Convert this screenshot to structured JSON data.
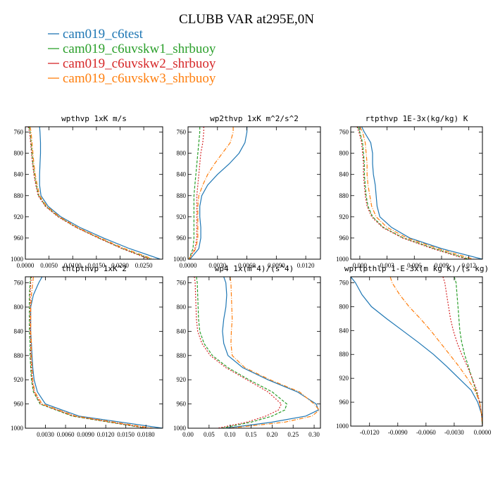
{
  "figure": {
    "title": "CLUBB VAR at295E,0N"
  },
  "legend": [
    {
      "name": "cam019_c6test",
      "color": "#1f77b4"
    },
    {
      "name": "cam019_c6uvskw1_shrbuoy",
      "color": "#2ca02c"
    },
    {
      "name": "cam019_c6uvskw2_shrbuoy",
      "color": "#d62728"
    },
    {
      "name": "cam019_c6uvskw3_shrbuoy",
      "color": "#ff7f0e"
    }
  ],
  "chart_data": [
    {
      "type": "line",
      "title": "wpthvp  1xK m/s",
      "xlim": [
        0,
        0.029
      ],
      "ylim": [
        1000,
        750
      ],
      "xticks": [
        0,
        0.005,
        0.01,
        0.015,
        0.02,
        0.025
      ],
      "xtick_labels": [
        "0.0000",
        "0.0050",
        "0.0100",
        "0.0150",
        "0.0200",
        "0.0250"
      ],
      "yticks": [
        760,
        800,
        840,
        880,
        920,
        960,
        1000
      ],
      "y": [
        750,
        760,
        780,
        800,
        820,
        840,
        860,
        880,
        900,
        920,
        940,
        960,
        980,
        1000
      ],
      "series": [
        {
          "x": [
            0.003,
            0.0031,
            0.0032,
            0.0032,
            0.0031,
            0.003,
            0.003,
            0.0033,
            0.0048,
            0.0075,
            0.0115,
            0.0165,
            0.022,
            0.0285
          ]
        },
        {
          "x": [
            0.0008,
            0.001,
            0.0012,
            0.0014,
            0.0016,
            0.0019,
            0.0023,
            0.0028,
            0.0043,
            0.007,
            0.0108,
            0.0155,
            0.0205,
            0.0265
          ]
        },
        {
          "x": [
            0.0006,
            0.0009,
            0.0011,
            0.0013,
            0.0015,
            0.0018,
            0.0022,
            0.0027,
            0.0042,
            0.0069,
            0.0107,
            0.0154,
            0.0204,
            0.0262
          ]
        },
        {
          "x": [
            0.001,
            0.0012,
            0.0014,
            0.0016,
            0.0018,
            0.0021,
            0.0025,
            0.003,
            0.0045,
            0.0072,
            0.011,
            0.0158,
            0.021,
            0.027
          ]
        }
      ]
    },
    {
      "type": "line",
      "title": "wp2thvp  1xK m^2/s^2",
      "xlim": [
        0,
        0.0135
      ],
      "ylim": [
        1000,
        750
      ],
      "xticks": [
        0,
        0.003,
        0.006,
        0.009,
        0.012
      ],
      "xtick_labels": [
        "0.0000",
        "0.0030",
        "0.0060",
        "0.0090",
        "0.0120"
      ],
      "yticks": [
        760,
        800,
        840,
        880,
        920,
        960,
        1000
      ],
      "y": [
        750,
        760,
        780,
        800,
        820,
        840,
        860,
        880,
        900,
        920,
        940,
        960,
        980,
        1000
      ],
      "series": [
        {
          "x": [
            0.006,
            0.006,
            0.0058,
            0.0052,
            0.0042,
            0.003,
            0.002,
            0.0014,
            0.0012,
            0.0012,
            0.0013,
            0.0013,
            0.0011,
            0.0002
          ]
        },
        {
          "x": [
            0.0012,
            0.0012,
            0.0011,
            0.001,
            0.0009,
            0.0008,
            0.0007,
            0.0006,
            0.0006,
            0.0006,
            0.0006,
            0.0006,
            0.0005,
            0.0001
          ]
        },
        {
          "x": [
            0.0016,
            0.0016,
            0.0015,
            0.0013,
            0.0012,
            0.0011,
            0.001,
            0.0009,
            0.0009,
            0.0009,
            0.0009,
            0.0009,
            0.0007,
            0.0001
          ]
        },
        {
          "x": [
            0.0046,
            0.0046,
            0.0043,
            0.0035,
            0.0027,
            0.002,
            0.0015,
            0.0011,
            0.001,
            0.001,
            0.001,
            0.001,
            0.0008,
            0.0001
          ]
        }
      ]
    },
    {
      "type": "line",
      "title": "rtpthvp  1E-3x(kg/kg) K",
      "xlim": [
        -0.001,
        0.0135
      ],
      "ylim": [
        1000,
        750
      ],
      "xticks": [
        0,
        0.003,
        0.006,
        0.009,
        0.012
      ],
      "xtick_labels": [
        "0.000",
        "0.003",
        "0.006",
        "0.009",
        "0.012"
      ],
      "yticks": [
        760,
        800,
        840,
        880,
        920,
        960,
        1000
      ],
      "y": [
        750,
        760,
        780,
        800,
        820,
        840,
        860,
        880,
        900,
        920,
        940,
        960,
        980,
        1000
      ],
      "series": [
        {
          "x": [
            0.0002,
            0.0005,
            0.0012,
            0.0014,
            0.0014,
            0.0015,
            0.0017,
            0.0018,
            0.0019,
            0.0022,
            0.0035,
            0.0055,
            0.009,
            0.0135
          ]
        },
        {
          "x": [
            -0.0002,
            0.0,
            0.0003,
            0.0004,
            0.0005,
            0.0005,
            0.0006,
            0.0007,
            0.0009,
            0.0014,
            0.0026,
            0.0048,
            0.0082,
            0.012
          ]
        },
        {
          "x": [
            -0.0003,
            -0.0001,
            0.0002,
            0.0003,
            0.0004,
            0.0004,
            0.0005,
            0.0006,
            0.0008,
            0.0013,
            0.0025,
            0.0047,
            0.008,
            0.0118
          ]
        },
        {
          "x": [
            0.0,
            0.0003,
            0.0006,
            0.0007,
            0.0008,
            0.0008,
            0.0009,
            0.0011,
            0.0013,
            0.0018,
            0.003,
            0.0052,
            0.0086,
            0.0125
          ]
        }
      ]
    },
    {
      "type": "line",
      "title": "thlpthvp  1xK^2",
      "xlim": [
        0,
        0.0205
      ],
      "ylim": [
        1000,
        750
      ],
      "xticks": [
        0.003,
        0.006,
        0.009,
        0.012,
        0.015,
        0.018
      ],
      "xtick_labels": [
        "0.0030",
        "0.0060",
        "0.0090",
        "0.0120",
        "0.0150",
        "0.0180"
      ],
      "yticks": [
        760,
        800,
        840,
        880,
        920,
        960,
        1000
      ],
      "y": [
        750,
        760,
        780,
        800,
        820,
        840,
        860,
        880,
        900,
        920,
        940,
        960,
        980,
        1000
      ],
      "series": [
        {
          "x": [
            0.0025,
            0.002,
            0.0012,
            0.0008,
            0.0008,
            0.0008,
            0.0009,
            0.001,
            0.0011,
            0.0013,
            0.0018,
            0.003,
            0.008,
            0.0205
          ]
        },
        {
          "x": [
            0.0008,
            0.0007,
            0.0006,
            0.0006,
            0.0006,
            0.0006,
            0.0007,
            0.0007,
            0.0008,
            0.0009,
            0.0012,
            0.0022,
            0.007,
            0.018
          ]
        },
        {
          "x": [
            0.0009,
            0.0008,
            0.0007,
            0.0007,
            0.0007,
            0.0007,
            0.0008,
            0.0008,
            0.0009,
            0.001,
            0.0013,
            0.0023,
            0.0072,
            0.0182
          ]
        },
        {
          "x": [
            0.0012,
            0.0011,
            0.0009,
            0.0008,
            0.0008,
            0.0008,
            0.0009,
            0.0009,
            0.001,
            0.0011,
            0.0014,
            0.0025,
            0.0075,
            0.019
          ]
        }
      ]
    },
    {
      "type": "line",
      "title": "wp4  1x(m^4)/(s^4)",
      "xlim": [
        0,
        0.315
      ],
      "ylim": [
        1000,
        750
      ],
      "xticks": [
        0,
        0.05,
        0.1,
        0.15,
        0.2,
        0.25,
        0.3
      ],
      "xtick_labels": [
        "0.00",
        "0.05",
        "0.10",
        "0.15",
        "0.20",
        "0.25",
        "0.30"
      ],
      "yticks": [
        760,
        800,
        840,
        880,
        920,
        960,
        1000
      ],
      "y": [
        750,
        760,
        780,
        800,
        820,
        840,
        860,
        880,
        900,
        920,
        940,
        960,
        970,
        980,
        990,
        1000
      ],
      "series": [
        {
          "x": [
            0.085,
            0.09,
            0.092,
            0.09,
            0.085,
            0.082,
            0.085,
            0.095,
            0.13,
            0.19,
            0.26,
            0.305,
            0.31,
            0.28,
            0.2,
            0.09
          ]
        },
        {
          "x": [
            0.02,
            0.022,
            0.023,
            0.024,
            0.025,
            0.028,
            0.038,
            0.058,
            0.095,
            0.145,
            0.2,
            0.235,
            0.23,
            0.2,
            0.15,
            0.08
          ]
        },
        {
          "x": [
            0.015,
            0.017,
            0.018,
            0.019,
            0.02,
            0.023,
            0.033,
            0.053,
            0.09,
            0.14,
            0.19,
            0.222,
            0.215,
            0.185,
            0.14,
            0.07
          ]
        },
        {
          "x": [
            0.1,
            0.102,
            0.103,
            0.104,
            0.105,
            0.103,
            0.102,
            0.105,
            0.135,
            0.195,
            0.265,
            0.3,
            0.312,
            0.295,
            0.23,
            0.1
          ]
        }
      ]
    },
    {
      "type": "line",
      "title": "wprtpthlp  1-E-3x(m kg K)/(s kg)",
      "xlim": [
        -0.014,
        0
      ],
      "ylim": [
        1000,
        750
      ],
      "xticks": [
        -0.012,
        -0.009,
        -0.006,
        -0.003,
        0
      ],
      "xtick_labels": [
        "-0.0120",
        "-0.0090",
        "-0.0060",
        "-0.0030",
        "0.0000"
      ],
      "yticks": [
        760,
        800,
        840,
        880,
        920,
        960,
        1000
      ],
      "y": [
        750,
        760,
        780,
        800,
        820,
        840,
        860,
        880,
        900,
        920,
        940,
        960,
        980,
        1000
      ],
      "series": [
        {
          "x": [
            -0.014,
            -0.0135,
            -0.0128,
            -0.0118,
            -0.0102,
            -0.0085,
            -0.0068,
            -0.0052,
            -0.0038,
            -0.0025,
            -0.0012,
            -0.0005,
            -0.0001,
            0.0
          ]
        },
        {
          "x": [
            -0.003,
            -0.0028,
            -0.0027,
            -0.0026,
            -0.0025,
            -0.0024,
            -0.0022,
            -0.0019,
            -0.0015,
            -0.0011,
            -0.0007,
            -0.0003,
            -0.0001,
            0.0
          ]
        },
        {
          "x": [
            -0.0042,
            -0.004,
            -0.0038,
            -0.0036,
            -0.0034,
            -0.0031,
            -0.0027,
            -0.0022,
            -0.0016,
            -0.0011,
            -0.0006,
            -0.0003,
            -0.0001,
            0.0
          ]
        },
        {
          "x": [
            -0.0098,
            -0.0096,
            -0.0088,
            -0.0078,
            -0.0066,
            -0.0055,
            -0.0045,
            -0.0035,
            -0.0025,
            -0.0016,
            -0.0008,
            -0.0003,
            -0.0001,
            0.0
          ]
        }
      ]
    }
  ]
}
